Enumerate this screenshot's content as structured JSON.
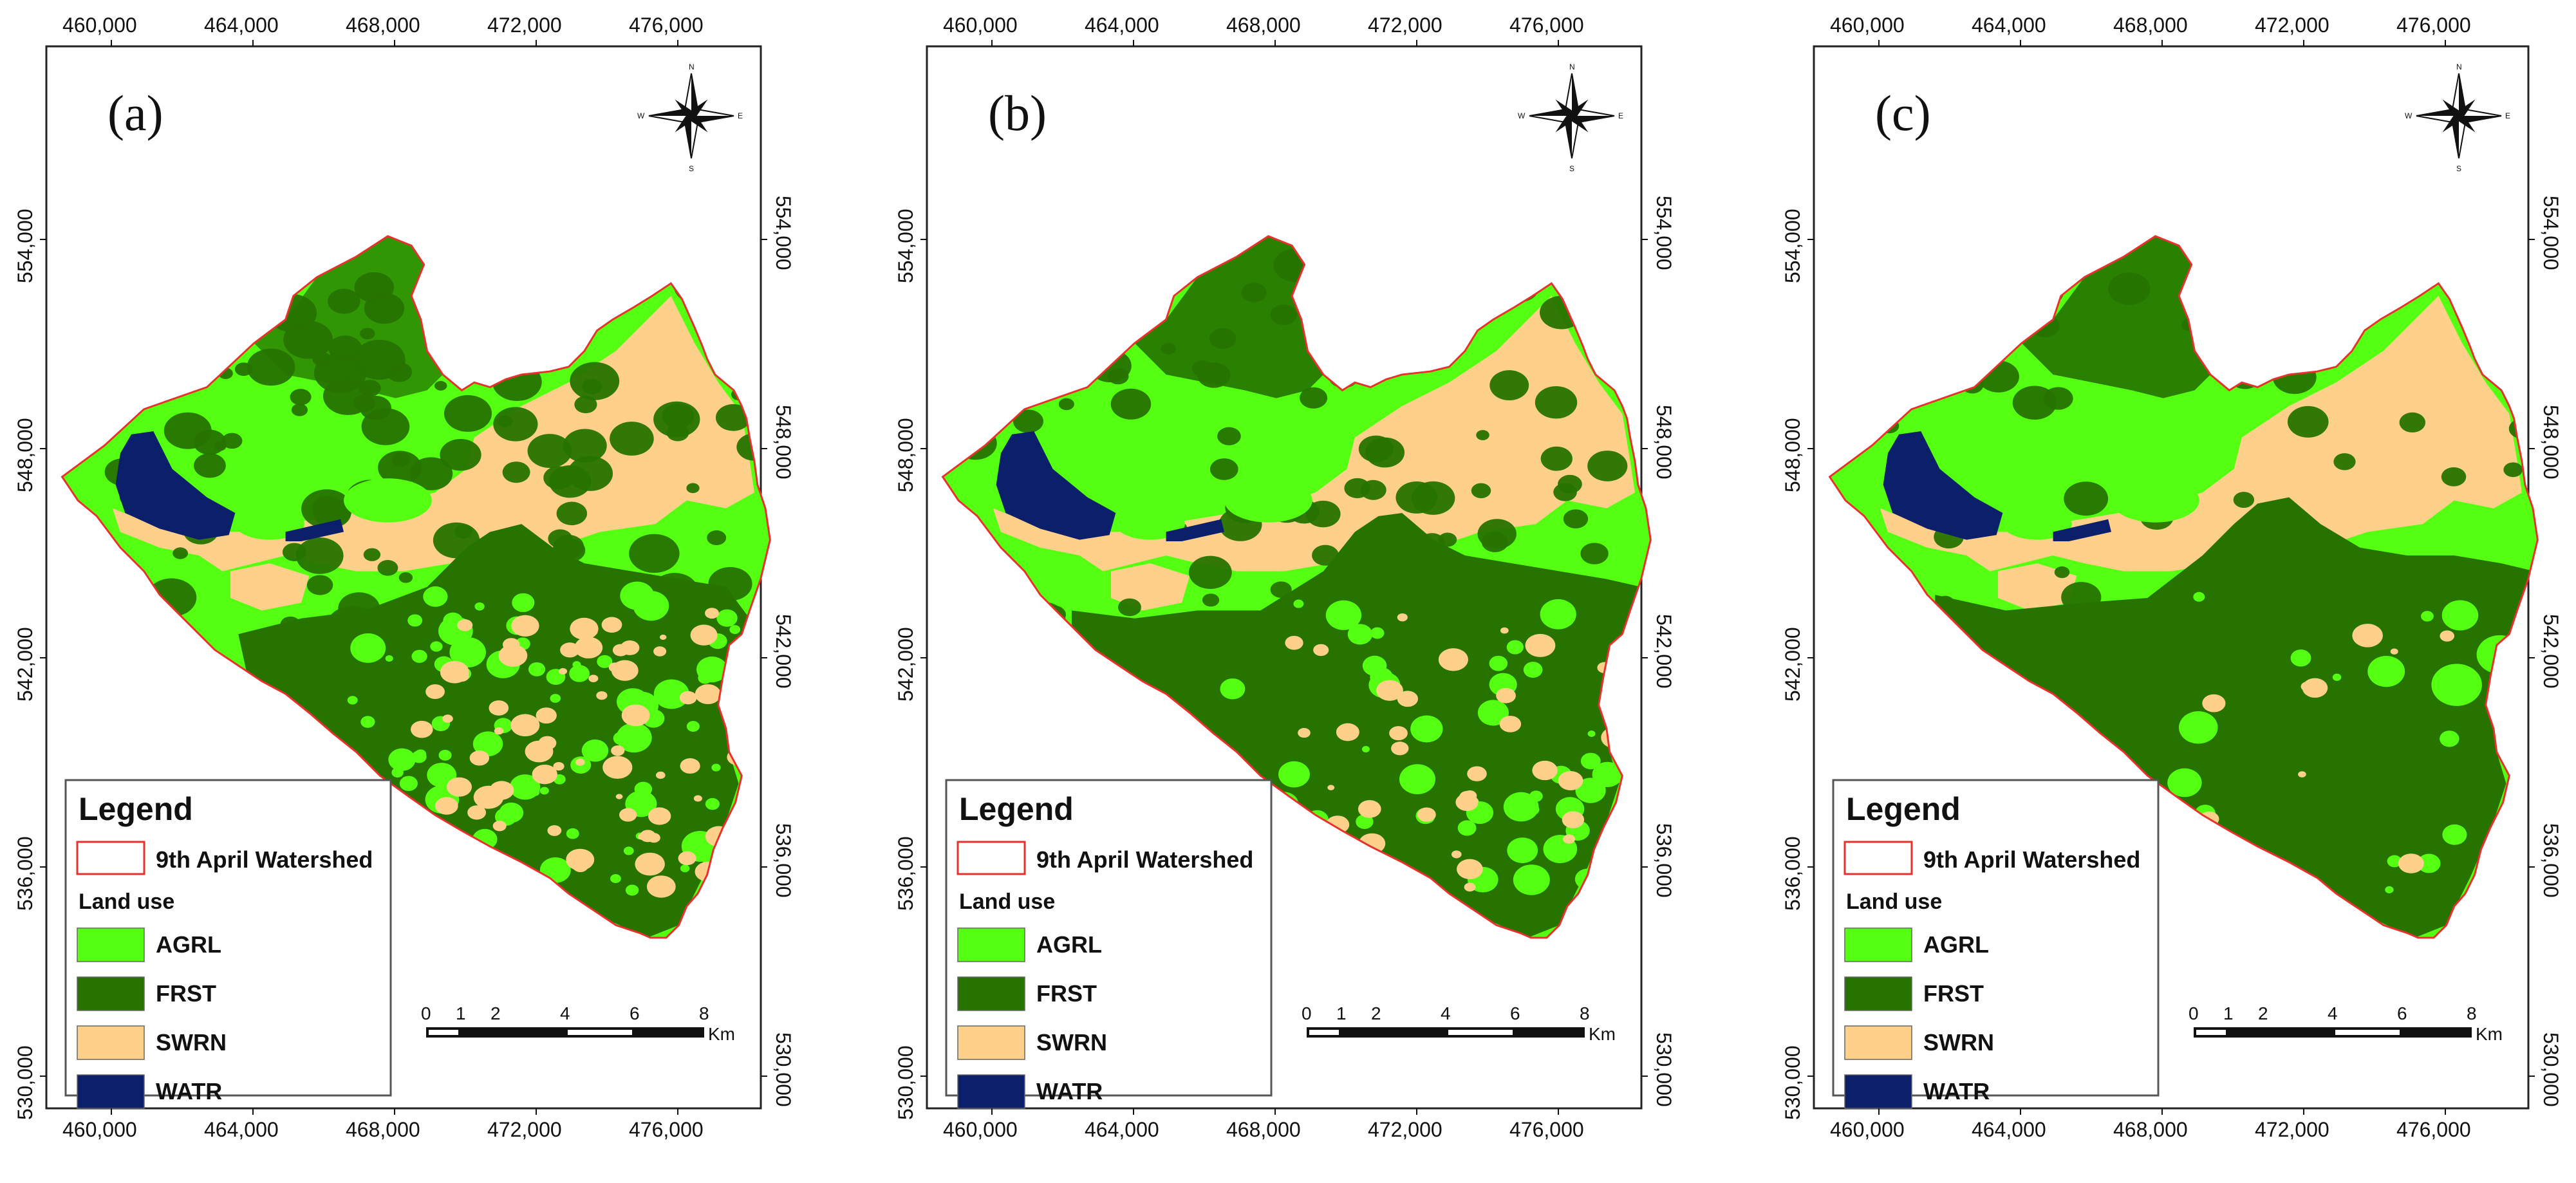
{
  "figure": {
    "panels": [
      {
        "label": "(a)",
        "forest_density": "low"
      },
      {
        "label": "(b)",
        "forest_density": "medium"
      },
      {
        "label": "(c)",
        "forest_density": "high"
      }
    ],
    "x_ticks": [
      "460,000",
      "464,000",
      "468,000",
      "472,000",
      "476,000"
    ],
    "y_ticks": [
      "554,000",
      "548,000",
      "542,000",
      "536,000",
      "530,000"
    ],
    "legend": {
      "title": "Legend",
      "watershed_label": "9th April Watershed",
      "land_use_heading": "Land use",
      "classes": [
        {
          "code": "AGRL",
          "color": "#55ff11"
        },
        {
          "code": "FRST",
          "color": "#267300"
        },
        {
          "code": "SWRN",
          "color": "#ffd08a"
        },
        {
          "code": "WATR",
          "color": "#0c1f6b"
        }
      ]
    },
    "scale_bar": {
      "labels": [
        "0",
        "1",
        "2",
        "4",
        "6",
        "8"
      ],
      "unit": "Km"
    },
    "compass": {
      "n": "N",
      "s": "S",
      "e": "E",
      "w": "W"
    },
    "colors": {
      "boundary": "#e8302c",
      "frame": "#222222",
      "agrl": "#55ff11",
      "frst": "#267300",
      "swrn": "#ffd08a",
      "watr": "#0c1f6b"
    }
  }
}
